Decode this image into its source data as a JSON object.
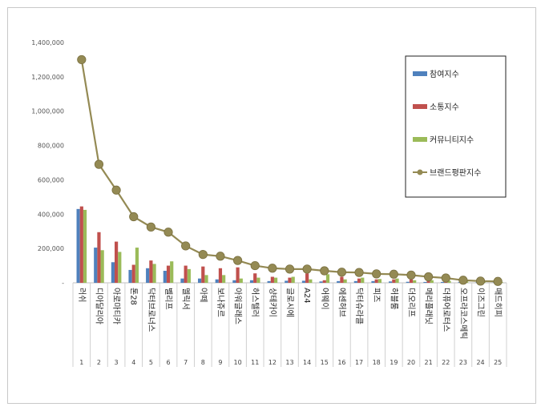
{
  "chart_data": {
    "type": "bar",
    "title": "",
    "xlabel": "",
    "ylabel": "",
    "ylim": [
      0,
      1400000
    ],
    "yticks": [
      0,
      200000,
      400000,
      600000,
      800000,
      1000000,
      1200000,
      1400000
    ],
    "ytick_labels": [
      "-",
      "200,000",
      "400,000",
      "600,000",
      "800,000",
      "1,000,000",
      "1,200,000",
      "1,400,000"
    ],
    "grid": false,
    "legend_position": "right",
    "categories": [
      "러쉬",
      "디아달리아",
      "아로마티카",
      "톤28",
      "닥터브로너스",
      "벨리프",
      "멜릭서",
      "아떼",
      "보나쥬르",
      "아워글래스",
      "허스텔러",
      "샹테카이",
      "글로시에",
      "A24",
      "어웨이",
      "에센허브",
      "닥터슈라클",
      "피즈",
      "허블룸",
      "더오리프",
      "메리플래닛",
      "더퓨어로터스",
      "오프라코스메틱",
      "이즈그린",
      "매드히피"
    ],
    "ranks": [
      "1",
      "2",
      "3",
      "4",
      "5",
      "6",
      "7",
      "8",
      "9",
      "10",
      "11",
      "12",
      "13",
      "14",
      "15",
      "16",
      "17",
      "18",
      "19",
      "20",
      "21",
      "22",
      "23",
      "24",
      "25"
    ],
    "series": [
      {
        "name": "참여지수",
        "type": "bar",
        "color": "#4f81bd",
        "values": [
          430000,
          205000,
          120000,
          75000,
          85000,
          70000,
          25000,
          25000,
          20000,
          15000,
          15000,
          10000,
          12000,
          12000,
          8000,
          10000,
          10000,
          10000,
          8000,
          6000,
          5000,
          5000,
          4000,
          3000,
          3000
        ]
      },
      {
        "name": "소통지수",
        "type": "bar",
        "color": "#c0504d",
        "values": [
          445000,
          295000,
          240000,
          105000,
          130000,
          100000,
          100000,
          95000,
          85000,
          90000,
          55000,
          35000,
          30000,
          55000,
          15000,
          35000,
          25000,
          20000,
          20000,
          20000,
          15000,
          12000,
          8000,
          5000,
          5000
        ]
      },
      {
        "name": "커뮤니티지수",
        "type": "bar",
        "color": "#9bbb59",
        "values": [
          425000,
          190000,
          180000,
          205000,
          110000,
          125000,
          80000,
          45000,
          45000,
          25000,
          30000,
          30000,
          35000,
          20000,
          50000,
          20000,
          30000,
          22000,
          25000,
          15000,
          15000,
          12000,
          8000,
          5000,
          5000
        ]
      },
      {
        "name": "브랜드평판지수",
        "type": "line",
        "color": "#948a54",
        "values": [
          1300000,
          690000,
          540000,
          385000,
          325000,
          295000,
          215000,
          165000,
          155000,
          130000,
          100000,
          85000,
          80000,
          80000,
          70000,
          62000,
          60000,
          52000,
          50000,
          45000,
          35000,
          28000,
          15000,
          10000,
          8000
        ]
      }
    ]
  }
}
